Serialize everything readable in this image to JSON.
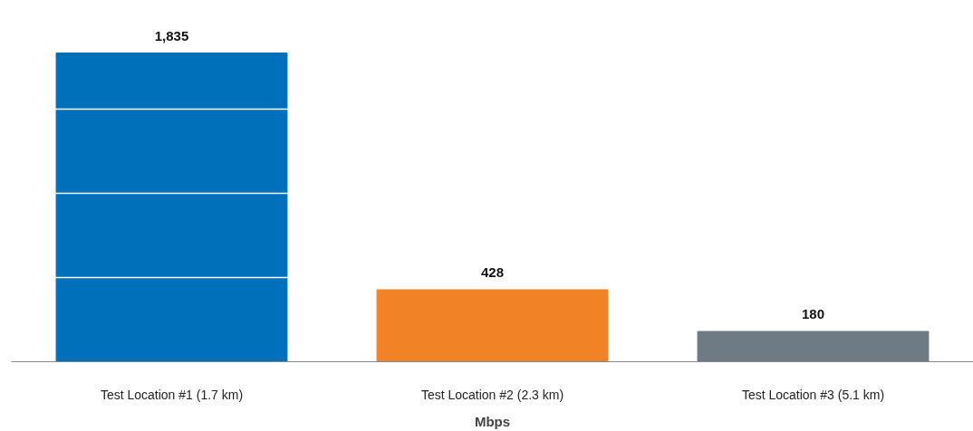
{
  "chart_data": {
    "type": "bar",
    "xlabel": "Mbps",
    "categories": [
      "Test Location #1 (1.7 km)",
      "Test Location #2 (2.3 km)",
      "Test Location #3 (5.1 km)"
    ],
    "values": [
      1835,
      428,
      180
    ],
    "colors": [
      "#0070bb",
      "#f28226",
      "#6e7b85"
    ],
    "value_labels": [
      "1,835",
      "428",
      "180"
    ],
    "yticks": [
      {
        "value": 500,
        "label": null
      },
      {
        "value": 1000,
        "label": null
      },
      {
        "value": 1500,
        "label": null
      }
    ],
    "grid": "y",
    "tick_labels": "x"
  }
}
